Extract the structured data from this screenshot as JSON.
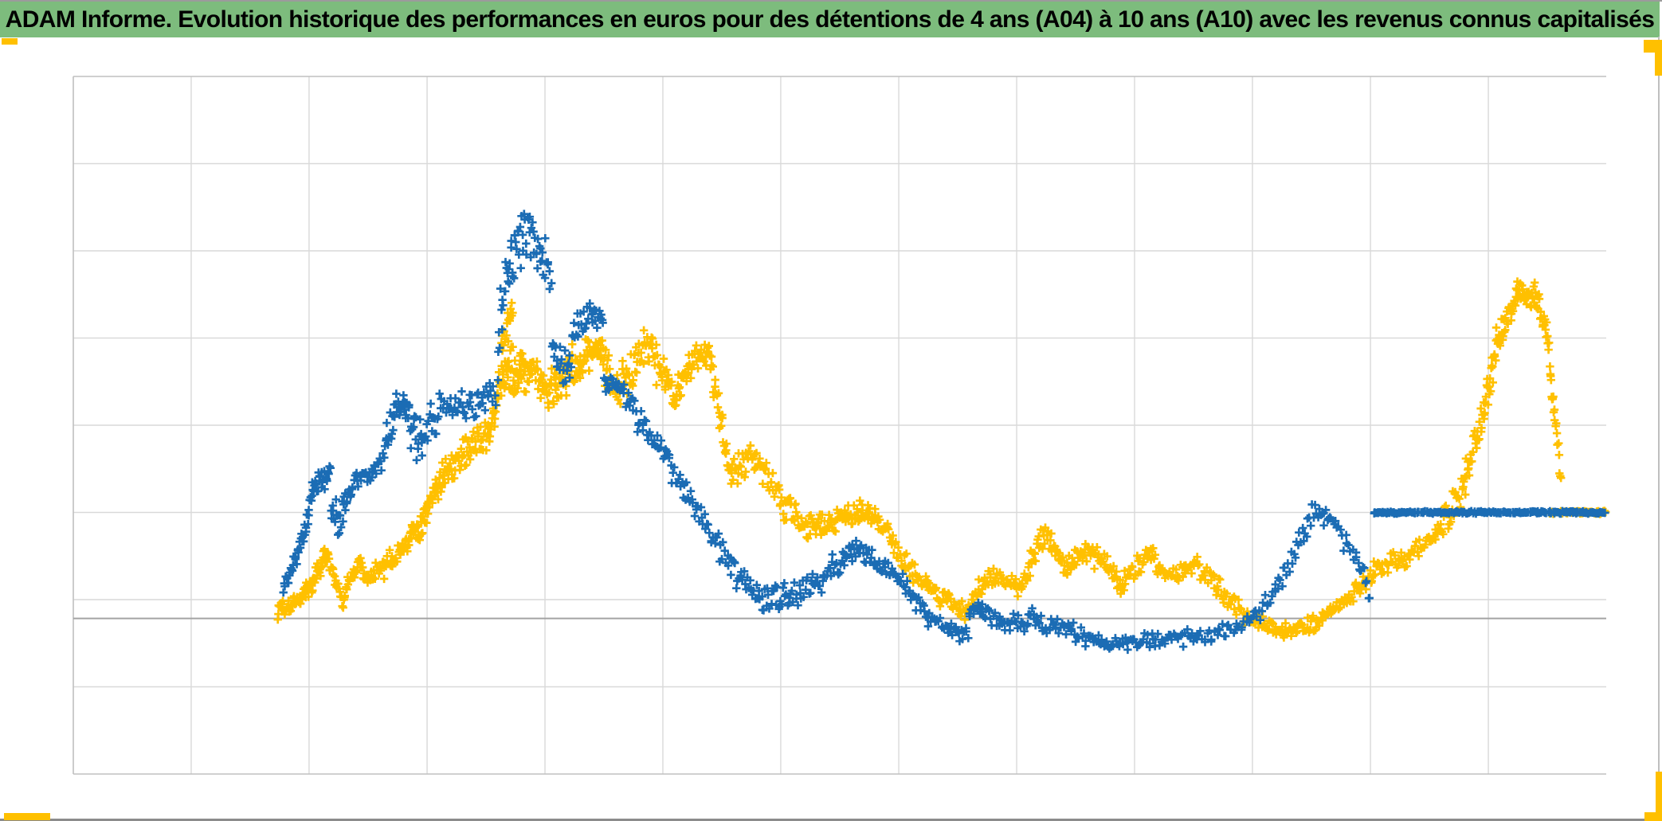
{
  "title_bar": {
    "text": "ADAM Informe. Evolution historique des performances en euros pour des détentions de 4 ans (A04) à 10 ans (A10) avec les revenus connus capitalisés",
    "bg_color": "#7DBC7D",
    "text_color": "#000000"
  },
  "decorations": {
    "corner_mark_color": "#FFC000",
    "bottom_line_color": "#8C8C8C",
    "top_edge_color": "#9B9B9B",
    "right_border_color": "#BFBFBF"
  },
  "chart_data": {
    "type": "scatter",
    "title": "ADAM Informe. Evolution historique des performances en euros pour des détentions de 4 ans (A04) à 10 ans (A10) avec les revenus connus capitalisés",
    "xlabel": "",
    "ylabel": "",
    "background": "#FFFFFF",
    "plot_border_color": "#C0C0C0",
    "gridline_color": "#D9D9D9",
    "axis_line_color": "#A3A3A3",
    "axis_line_y_pct": 22.3,
    "flat_terminal_value_y_pct": 37.5,
    "x_axis": {
      "tick_labels_visible": false,
      "range_pct": [
        0,
        100
      ],
      "gridlines_pct": [
        7.69,
        15.38,
        23.08,
        30.77,
        38.46,
        46.15,
        53.85,
        61.54,
        69.23,
        76.92,
        84.62,
        92.31
      ]
    },
    "y_axis": {
      "tick_labels_visible": false,
      "range_pct": [
        0,
        100
      ],
      "gridlines_pct": [
        12.5,
        25,
        37.5,
        50,
        62.5,
        75,
        87.5
      ]
    },
    "legend": "none",
    "marker": "plus",
    "segment_format": "[x0_pct, x1_pct, y0_pct_from_bottom, y1_pct_from_bottom, y_spread_pct, n_points]",
    "series": [
      {
        "name": "series_gold",
        "color": "#FFC000",
        "segments": [
          [
            13.3,
            14.7,
            23.1,
            24.8,
            1.5,
            30
          ],
          [
            14.7,
            15.7,
            24.8,
            27.6,
            1.5,
            25
          ],
          [
            15.7,
            16.5,
            27.6,
            31.6,
            1.8,
            22
          ],
          [
            16.5,
            17.5,
            31.6,
            25.1,
            1.5,
            20
          ],
          [
            17.5,
            18.6,
            25.1,
            30.4,
            1.8,
            22
          ],
          [
            18.6,
            19.2,
            30.4,
            27.9,
            1.5,
            14
          ],
          [
            19.2,
            21.5,
            27.9,
            32.2,
            2.0,
            40
          ],
          [
            21.5,
            22.5,
            32.2,
            36.2,
            2.2,
            25
          ],
          [
            22.5,
            23.3,
            34.2,
            39.6,
            2.5,
            22
          ],
          [
            23.3,
            24.4,
            39.6,
            43.6,
            2.5,
            28
          ],
          [
            24.4,
            27.0,
            43.6,
            48.7,
            2.8,
            55
          ],
          [
            27.0,
            28.4,
            48.7,
            59.0,
            3.5,
            40
          ],
          [
            27.9,
            28.7,
            62.0,
            66.0,
            3.5,
            18
          ],
          [
            28.4,
            29.5,
            57.3,
            57.9,
            4.5,
            35
          ],
          [
            29.5,
            31.3,
            57.9,
            55.0,
            4.0,
            40
          ],
          [
            31.3,
            32.7,
            55.0,
            59.0,
            4.0,
            35
          ],
          [
            32.7,
            34.3,
            59.0,
            60.7,
            3.0,
            40
          ],
          [
            34.3,
            35.5,
            60.7,
            55.0,
            3.5,
            30
          ],
          [
            35.5,
            37.4,
            55.0,
            61.9,
            3.2,
            40
          ],
          [
            37.4,
            39.1,
            61.9,
            53.3,
            3.5,
            35
          ],
          [
            39.1,
            40.3,
            53.3,
            59.0,
            3.0,
            28
          ],
          [
            40.3,
            41.4,
            59.0,
            60.7,
            2.5,
            22
          ],
          [
            41.4,
            42.8,
            60.7,
            43.6,
            3.0,
            30
          ],
          [
            42.8,
            44.3,
            43.6,
            45.9,
            3.0,
            25
          ],
          [
            44.3,
            45.9,
            45.9,
            40.2,
            3.0,
            25
          ],
          [
            45.9,
            47.7,
            40.2,
            35.0,
            3.0,
            30
          ],
          [
            47.7,
            49.3,
            35.0,
            36.2,
            2.2,
            30
          ],
          [
            49.3,
            51.4,
            36.2,
            37.6,
            2.2,
            40
          ],
          [
            51.4,
            52.4,
            37.6,
            37.3,
            2.0,
            20
          ],
          [
            52.4,
            53.7,
            37.3,
            32.2,
            2.0,
            22
          ],
          [
            53.7,
            55.5,
            32.2,
            27.1,
            2.0,
            28
          ],
          [
            55.5,
            58.1,
            27.1,
            23.3,
            1.8,
            40
          ],
          [
            58.1,
            59.7,
            23.3,
            28.1,
            1.8,
            25
          ],
          [
            59.7,
            61.7,
            28.1,
            26.5,
            1.8,
            30
          ],
          [
            61.7,
            63.4,
            26.5,
            34.7,
            2.2,
            30
          ],
          [
            63.4,
            64.6,
            34.7,
            29.3,
            2.0,
            20
          ],
          [
            64.6,
            65.9,
            29.3,
            31.8,
            2.0,
            22
          ],
          [
            65.9,
            67.2,
            31.8,
            30.7,
            2.2,
            22
          ],
          [
            67.2,
            68.4,
            30.7,
            26.7,
            1.8,
            20
          ],
          [
            68.4,
            70.1,
            26.7,
            32.2,
            2.0,
            25
          ],
          [
            70.1,
            71.4,
            32.2,
            27.9,
            1.8,
            20
          ],
          [
            71.4,
            72.9,
            27.9,
            30.5,
            1.8,
            22
          ],
          [
            72.9,
            74.5,
            30.5,
            27.4,
            1.8,
            22
          ],
          [
            74.5,
            76.3,
            27.4,
            22.8,
            1.8,
            25
          ],
          [
            76.3,
            78.6,
            22.8,
            20.4,
            1.5,
            35
          ],
          [
            78.6,
            81.0,
            20.4,
            21.7,
            1.5,
            35
          ],
          [
            81.0,
            83.1,
            21.7,
            24.8,
            1.7,
            30
          ],
          [
            83.1,
            85.1,
            24.8,
            29.7,
            1.8,
            30
          ],
          [
            85.1,
            87.2,
            29.7,
            31.1,
            1.8,
            30
          ],
          [
            87.2,
            89.0,
            31.1,
            34.5,
            1.8,
            25
          ],
          [
            89.0,
            90.6,
            34.5,
            40.8,
            2.5,
            25
          ],
          [
            90.6,
            92.0,
            40.8,
            51.6,
            3.0,
            30
          ],
          [
            92.0,
            92.9,
            51.6,
            61.9,
            3.0,
            25
          ],
          [
            92.9,
            94.2,
            61.9,
            68.7,
            2.5,
            30
          ],
          [
            94.2,
            95.5,
            68.7,
            68.1,
            2.5,
            30
          ],
          [
            95.5,
            96.3,
            68.1,
            61.9,
            2.5,
            20
          ],
          [
            96.3,
            96.7,
            58.4,
            50.5,
            2.0,
            12
          ],
          [
            96.7,
            97.1,
            50.5,
            41.3,
            1.5,
            8
          ],
          [
            96.3,
            100,
            37.5,
            37.5,
            0.25,
            45
          ]
        ]
      },
      {
        "name": "series_blue",
        "color": "#1B6CB4",
        "segments": [
          [
            13.7,
            14.6,
            26.7,
            31.1,
            1.6,
            18
          ],
          [
            14.6,
            15.4,
            31.1,
            37.9,
            2.2,
            18
          ],
          [
            15.4,
            16.1,
            39.6,
            43.0,
            2.2,
            16
          ],
          [
            16.1,
            16.8,
            42.5,
            42.7,
            1.8,
            14
          ],
          [
            16.8,
            17.5,
            37.9,
            36.2,
            2.8,
            14
          ],
          [
            17.5,
            18.2,
            37.9,
            41.1,
            2.2,
            14
          ],
          [
            18.2,
            19.2,
            41.9,
            43.0,
            1.5,
            14
          ],
          [
            19.2,
            20.3,
            42.5,
            45.3,
            1.8,
            16
          ],
          [
            20.3,
            21.2,
            47.0,
            53.3,
            2.8,
            18
          ],
          [
            21.2,
            22.0,
            53.3,
            51.0,
            3.2,
            16
          ],
          [
            22.0,
            23.0,
            48.7,
            48.7,
            4.0,
            20
          ],
          [
            23.0,
            24.2,
            49.9,
            52.2,
            3.2,
            18
          ],
          [
            24.2,
            26.1,
            52.5,
            53.0,
            2.5,
            25
          ],
          [
            26.1,
            27.7,
            53.0,
            55.0,
            2.5,
            20
          ],
          [
            27.7,
            28.9,
            63.0,
            76.7,
            6.0,
            25
          ],
          [
            28.9,
            30.1,
            76.7,
            77.3,
            5.0,
            22
          ],
          [
            30.1,
            31.2,
            75.6,
            71.6,
            4.0,
            18
          ],
          [
            31.2,
            32.5,
            61.9,
            57.3,
            3.5,
            22
          ],
          [
            32.5,
            33.7,
            63.0,
            66.4,
            2.5,
            18
          ],
          [
            33.7,
            34.6,
            65.9,
            64.7,
            2.0,
            14
          ],
          [
            34.6,
            36.0,
            56.2,
            55.0,
            2.5,
            20
          ],
          [
            36.0,
            37.6,
            53.9,
            48.7,
            3.0,
            22
          ],
          [
            37.6,
            39.1,
            48.2,
            43.6,
            2.5,
            20
          ],
          [
            39.1,
            40.7,
            43.6,
            37.9,
            2.8,
            20
          ],
          [
            40.7,
            42.8,
            37.9,
            29.9,
            2.8,
            25
          ],
          [
            42.8,
            45.1,
            29.9,
            24.8,
            2.5,
            28
          ],
          [
            45.1,
            47.4,
            24.8,
            25.9,
            2.5,
            30
          ],
          [
            47.4,
            49.3,
            25.9,
            28.5,
            2.0,
            25
          ],
          [
            49.3,
            51.1,
            29.3,
            32.2,
            2.2,
            25
          ],
          [
            51.1,
            52.6,
            32.2,
            29.7,
            2.0,
            20
          ],
          [
            52.6,
            53.9,
            29.7,
            28.1,
            1.8,
            18
          ],
          [
            53.9,
            55.5,
            28.1,
            23.1,
            2.2,
            20
          ],
          [
            55.5,
            58.4,
            22.5,
            20.2,
            1.8,
            35
          ],
          [
            58.4,
            59.9,
            23.3,
            23.3,
            1.5,
            20
          ],
          [
            59.9,
            62.3,
            21.9,
            21.3,
            1.5,
            28
          ],
          [
            62.3,
            63.3,
            23.1,
            21.7,
            1.4,
            14
          ],
          [
            63.3,
            65.4,
            21.0,
            20.8,
            1.4,
            22
          ],
          [
            65.4,
            68.0,
            19.9,
            18.7,
            1.4,
            28
          ],
          [
            68.0,
            70.6,
            18.7,
            19.4,
            1.4,
            28
          ],
          [
            70.6,
            73.2,
            19.4,
            19.6,
            1.4,
            25
          ],
          [
            73.2,
            75.5,
            19.6,
            20.8,
            1.4,
            22
          ],
          [
            75.5,
            77.6,
            20.8,
            23.3,
            1.5,
            20
          ],
          [
            77.6,
            79.2,
            23.3,
            29.3,
            2.0,
            16
          ],
          [
            79.2,
            80.7,
            29.3,
            37.3,
            2.2,
            16
          ],
          [
            80.7,
            82.1,
            37.3,
            36.2,
            2.0,
            16
          ],
          [
            82.1,
            83.6,
            36.2,
            31.6,
            2.0,
            14
          ],
          [
            83.6,
            84.6,
            31.6,
            25.9,
            2.2,
            12
          ],
          [
            84.8,
            100,
            37.5,
            37.5,
            0.22,
            190
          ]
        ]
      }
    ]
  }
}
